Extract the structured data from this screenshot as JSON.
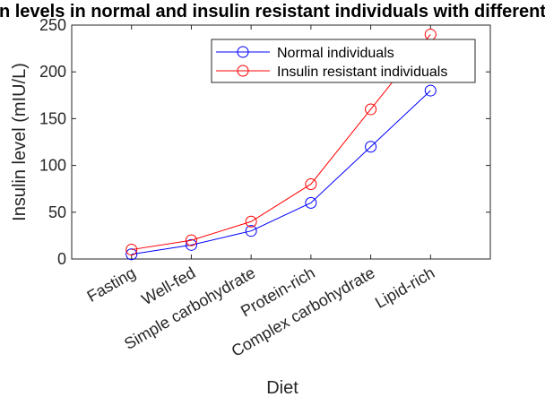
{
  "chart_data": {
    "type": "line",
    "title": "Insulin levels in normal and insulin resistant individuals with different diets",
    "xlabel": "Diet",
    "ylabel": "Insulin level (mIU/L)",
    "categories": [
      "Fasting",
      "Well-fed",
      "Simple carbohydrate",
      "Protein-rich",
      "Complex carbohydrate",
      "Lipid-rich"
    ],
    "ylim": [
      0,
      250
    ],
    "yticks": [
      "0",
      "50",
      "100",
      "150",
      "200",
      "250"
    ],
    "series": [
      {
        "name": "Normal individuals",
        "values": [
          5,
          15,
          30,
          60,
          120,
          180
        ],
        "color": "#0000ff",
        "marker": "circle"
      },
      {
        "name": "Insulin resistant individuals",
        "values": [
          10,
          20,
          40,
          80,
          160,
          240
        ],
        "color": "#ff0000",
        "marker": "circle"
      }
    ],
    "grid": false,
    "legend_position": "top-right"
  }
}
